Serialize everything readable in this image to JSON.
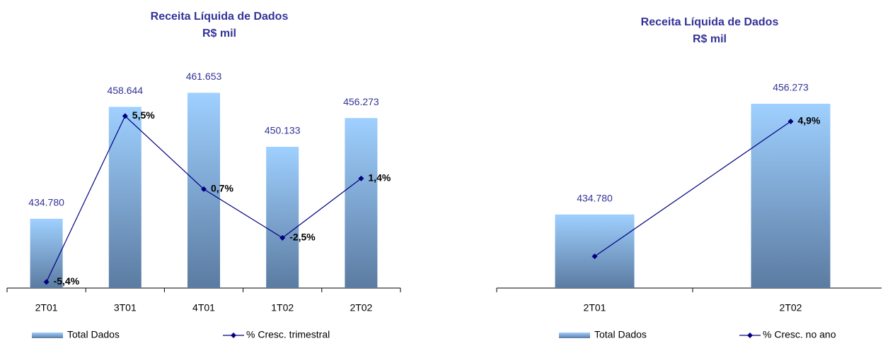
{
  "chart_data": [
    {
      "type": "bar-line",
      "title": "Receita Líquida de Dados",
      "subtitle": "R$ mil",
      "categories": [
        "2T01",
        "3T01",
        "4T01",
        "1T02",
        "2T02"
      ],
      "series": [
        {
          "name": "Total Dados",
          "color": "#99ccff",
          "values": [
            434.78,
            458.644,
            461.653,
            450.133,
            456.273
          ],
          "value_labels": [
            "434.780",
            "458.644",
            "461.653",
            "450.133",
            "456.273"
          ]
        },
        {
          "name": "% Cresc. trimestral",
          "color": "#000080",
          "axis": "y2",
          "values": [
            -5.4,
            5.5,
            0.7,
            -2.5,
            1.4
          ],
          "value_labels": [
            "-5,4%",
            "5,5%",
            "0,7%",
            "-2,5%",
            "1,4%"
          ]
        }
      ],
      "ylim": [
        420,
        470
      ],
      "y2lim": [
        -5.8,
        9.6
      ]
    },
    {
      "type": "bar-line",
      "title": "Receita Líquida de Dados",
      "subtitle": "R$ mil",
      "categories": [
        "2T01",
        "2T02"
      ],
      "series": [
        {
          "name": "Total Dados",
          "color": "#99ccff",
          "values": [
            434.78,
            456.273
          ],
          "value_labels": [
            "434.780",
            "456.273"
          ]
        },
        {
          "name": "% Cresc. no ano",
          "color": "#000080",
          "axis": "y2",
          "values": [
            0,
            4.9
          ],
          "value_labels": [
            null,
            "4,9%"
          ]
        }
      ],
      "ylim": [
        420.5,
        466
      ],
      "y2lim": [
        -1.15,
        7.36
      ]
    }
  ]
}
